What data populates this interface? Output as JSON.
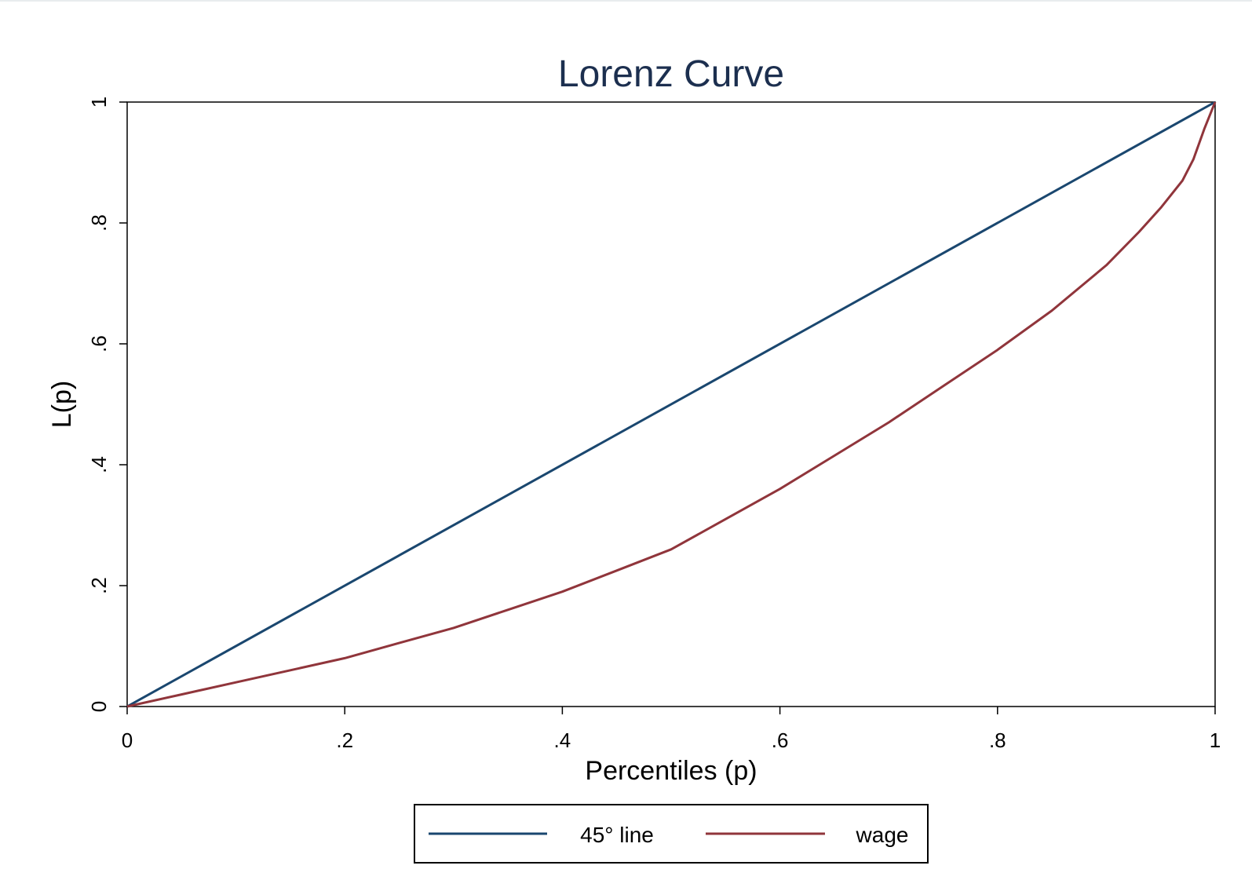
{
  "chart_data": {
    "type": "line",
    "title": "Lorenz Curve",
    "xlabel": "Percentiles (p)",
    "ylabel": "L(p)",
    "xlim": [
      0,
      1
    ],
    "ylim": [
      0,
      1
    ],
    "x_ticks": [
      0,
      0.2,
      0.4,
      0.6,
      0.8,
      1
    ],
    "x_tick_labels": [
      "0",
      ".2",
      ".4",
      ".6",
      ".8",
      "1"
    ],
    "y_ticks": [
      0,
      0.2,
      0.4,
      0.6,
      0.8,
      1
    ],
    "y_tick_labels": [
      "0",
      ".2",
      ".4",
      ".6",
      ".8",
      "1"
    ],
    "grid": false,
    "legend_position": "bottom",
    "title_color": "#1c2f4f",
    "series": [
      {
        "name": "45° line",
        "color": "#1a476f",
        "x": [
          0,
          1
        ],
        "y": [
          0,
          1
        ]
      },
      {
        "name": "wage",
        "color": "#90353b",
        "x": [
          0,
          0.05,
          0.1,
          0.15,
          0.2,
          0.25,
          0.3,
          0.35,
          0.4,
          0.45,
          0.5,
          0.55,
          0.6,
          0.65,
          0.7,
          0.75,
          0.8,
          0.85,
          0.9,
          0.93,
          0.95,
          0.97,
          0.98,
          0.99,
          1.0
        ],
        "y": [
          0,
          0.02,
          0.04,
          0.06,
          0.08,
          0.105,
          0.13,
          0.16,
          0.19,
          0.225,
          0.26,
          0.31,
          0.36,
          0.415,
          0.47,
          0.53,
          0.59,
          0.655,
          0.73,
          0.785,
          0.825,
          0.87,
          0.905,
          0.955,
          1.0
        ]
      }
    ]
  }
}
